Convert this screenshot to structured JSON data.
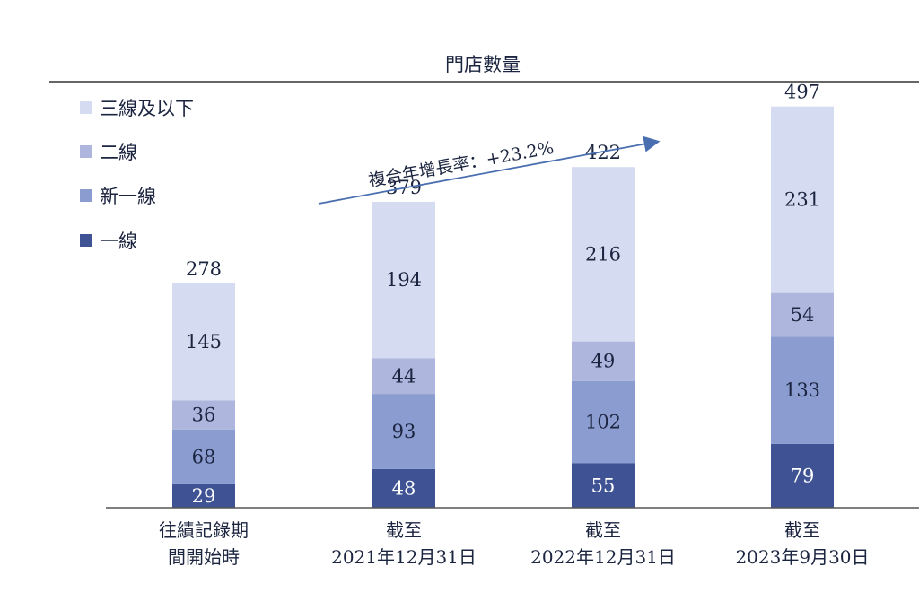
{
  "chart_data": {
    "type": "bar",
    "stacked": true,
    "title": "門店數量",
    "categories": [
      [
        "往績記錄期",
        "間開始時"
      ],
      [
        "截至",
        "2021年12月31日"
      ],
      [
        "截至",
        "2022年12月31日"
      ],
      [
        "截至",
        "2023年9月30日"
      ]
    ],
    "series": [
      {
        "name": "一線",
        "values": [
          29,
          48,
          55,
          79
        ],
        "color": "#3f5394",
        "label_color": "#ffffff"
      },
      {
        "name": "新一線",
        "values": [
          68,
          93,
          102,
          133
        ],
        "color": "#8a9cd0",
        "label_color": "#1c2540"
      },
      {
        "name": "二線",
        "values": [
          36,
          44,
          49,
          54
        ],
        "color": "#aeb6dd",
        "label_color": "#1c2540"
      },
      {
        "name": "三線及以下",
        "values": [
          145,
          194,
          216,
          231
        ],
        "color": "#d5dcf1",
        "label_color": "#1c2540"
      }
    ],
    "totals": [
      278,
      379,
      422,
      497
    ],
    "legend_order": [
      "三線及以下",
      "二線",
      "新一線",
      "一線"
    ],
    "legend_position": "top-left",
    "annotation": "複合年增長率：+23.2%",
    "ylim": [
      0,
      540
    ],
    "grid": false,
    "axis_color": "#555555",
    "text_color": "#1c2540"
  }
}
